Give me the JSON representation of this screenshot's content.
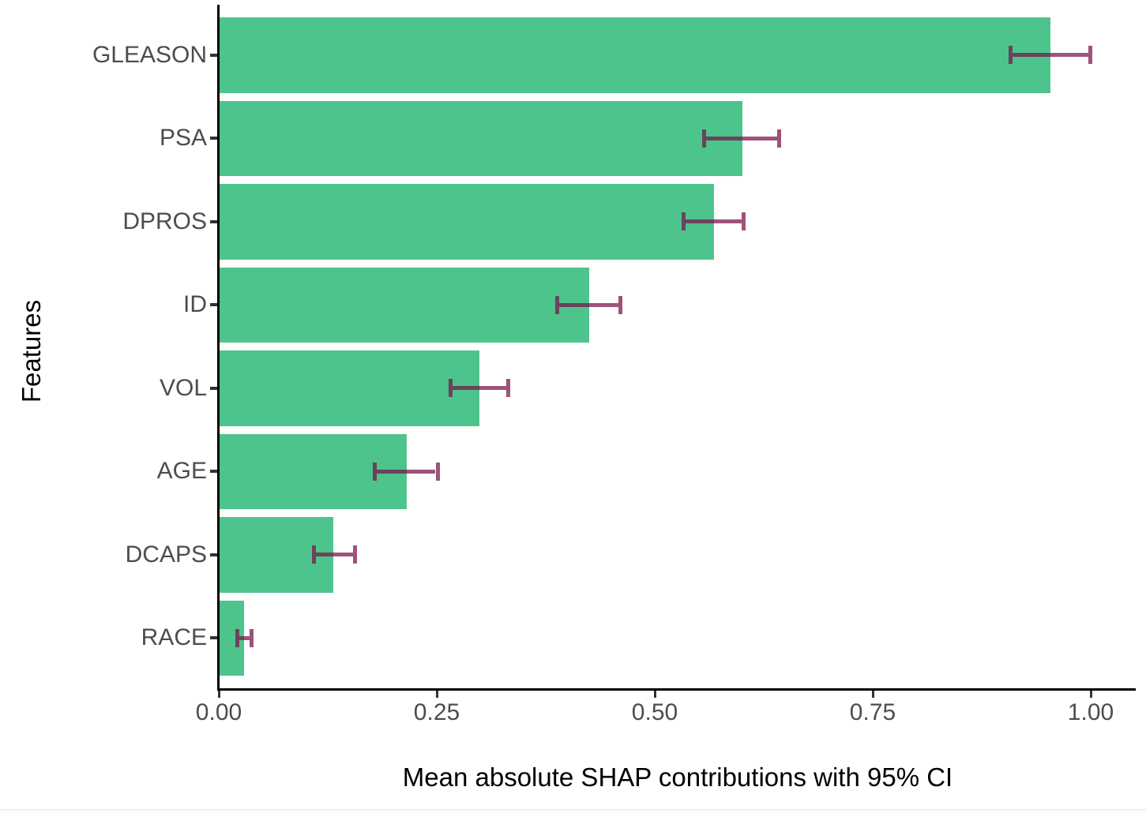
{
  "chart_data": {
    "type": "bar",
    "orientation": "horizontal",
    "xlabel": "Mean absolute SHAP contributions with 95% CI",
    "ylabel": "Features",
    "xlim": [
      0,
      1.05
    ],
    "xticks": [
      0,
      0.25,
      0.5,
      0.75,
      1.0
    ],
    "xtick_labels": [
      "0.00",
      "0.25",
      "0.50",
      "0.75",
      "1.00"
    ],
    "grid": false,
    "legend": "none",
    "bar_color": "#4DC48C",
    "errorbar_color": "#770F48",
    "axis_text_color": "#4d4d4d",
    "features": [
      {
        "label": "GLEASON",
        "value": 0.953,
        "ci_low": 0.907,
        "ci_high": 0.999
      },
      {
        "label": "PSA",
        "value": 0.6,
        "ci_low": 0.556,
        "ci_high": 0.642
      },
      {
        "label": "DPROS",
        "value": 0.567,
        "ci_low": 0.532,
        "ci_high": 0.601
      },
      {
        "label": "ID",
        "value": 0.424,
        "ci_low": 0.387,
        "ci_high": 0.46
      },
      {
        "label": "VOL",
        "value": 0.298,
        "ci_low": 0.265,
        "ci_high": 0.331
      },
      {
        "label": "AGE",
        "value": 0.215,
        "ci_low": 0.178,
        "ci_high": 0.25
      },
      {
        "label": "DCAPS",
        "value": 0.13,
        "ci_low": 0.108,
        "ci_high": 0.155
      },
      {
        "label": "RACE",
        "value": 0.028,
        "ci_low": 0.02,
        "ci_high": 0.037
      }
    ]
  }
}
